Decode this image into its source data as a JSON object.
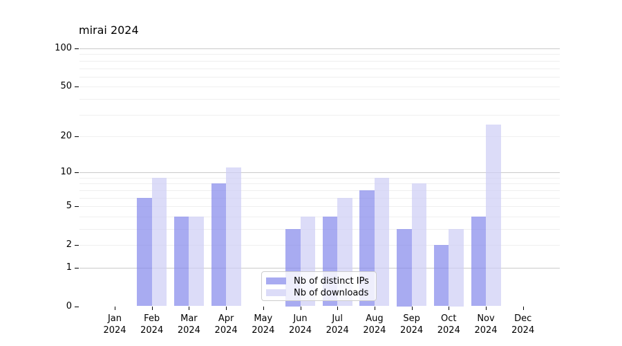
{
  "title": "mirai 2024",
  "colors": {
    "axis": "#000000",
    "grid_major": "#c9c9c9",
    "grid_minor": "#efefef",
    "legend_border": "#cccccc",
    "ips_fill": "#8387eb",
    "ips_alpha": 0.7,
    "ips_legend": "#a8abf1",
    "downloads_fill": "#cdcdf5",
    "downloads_alpha": 0.7,
    "downloads_legend": "#dcdcf8"
  },
  "legend": {
    "items": [
      {
        "label": "Nb of distinct IPs"
      },
      {
        "label": "Nb of downloads"
      }
    ]
  },
  "chart_data": {
    "type": "bar",
    "title": "mirai 2024",
    "categories": [
      "Jan 2024",
      "Feb 2024",
      "Mar 2024",
      "Apr 2024",
      "May 2024",
      "Jun 2024",
      "Jul 2024",
      "Aug 2024",
      "Sep 2024",
      "Oct 2024",
      "Nov 2024",
      "Dec 2024"
    ],
    "series": [
      {
        "name": "Nb of distinct IPs",
        "color": "#8387eb",
        "alpha": 0.7,
        "legend_color": "#a8abf1",
        "values": [
          0,
          6,
          4,
          8,
          0,
          3,
          4,
          7,
          3,
          2,
          4,
          0
        ]
      },
      {
        "name": "Nb of downloads",
        "color": "#cdcdf5",
        "alpha": 0.7,
        "legend_color": "#dcdcf8",
        "values": [
          0,
          9,
          4,
          11,
          0,
          4,
          6,
          9,
          8,
          3,
          25,
          0
        ]
      }
    ],
    "xlabel": "",
    "ylabel": "",
    "yscale": "log1p",
    "ylim": [
      0,
      117
    ],
    "yticks": [
      0,
      1,
      2,
      5,
      10,
      20,
      50,
      100
    ],
    "major_gridlines": [
      1,
      10,
      100
    ],
    "minor_gridlines": [
      2,
      3,
      4,
      5,
      6,
      7,
      8,
      9,
      20,
      30,
      40,
      50,
      60,
      70,
      80,
      90
    ],
    "grid": true,
    "legend_position": "lower center"
  }
}
